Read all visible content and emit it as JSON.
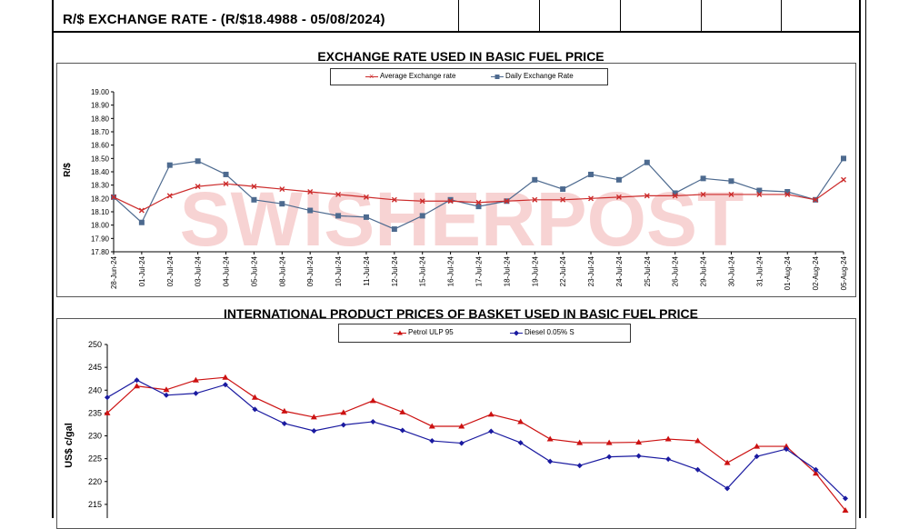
{
  "header": {
    "title": "R/$ EXCHANGE RATE - (R/$18.4988 - 05/08/2024)"
  },
  "watermark": "SWISHERPOST",
  "colors": {
    "average": "#cc2b2b",
    "daily": "#4d6a8f",
    "petrol": "#cc1111",
    "diesel": "#1a1aa0",
    "watermark": "#f5c5c5"
  },
  "chart_data": [
    {
      "type": "line",
      "title": "EXCHANGE RATE USED IN BASIC FUEL PRICE",
      "ylabel": "R/$",
      "xlabel": "",
      "ylim": [
        17.8,
        19.0
      ],
      "yticks": [
        "19.00",
        "18.90",
        "18.80",
        "18.70",
        "18.60",
        "18.50",
        "18.40",
        "18.30",
        "18.20",
        "18.10",
        "18.00",
        "17.90",
        "17.80"
      ],
      "grid": false,
      "legend": "top-center",
      "categories": [
        "28-Jun-24",
        "01-Jul-24",
        "02-Jul-24",
        "03-Jul-24",
        "04-Jul-24",
        "05-Jul-24",
        "08-Jul-24",
        "09-Jul-24",
        "10-Jul-24",
        "11-Jul-24",
        "12-Jul-24",
        "15-Jul-24",
        "16-Jul-24",
        "17-Jul-24",
        "18-Jul-24",
        "19-Jul-24",
        "22-Jul-24",
        "23-Jul-24",
        "24-Jul-24",
        "25-Jul-24",
        "26-Jul-24",
        "29-Jul-24",
        "30-Jul-24",
        "31-Jul-24",
        "01-Aug-24",
        "02-Aug-24",
        "05-Aug-24"
      ],
      "series": [
        {
          "name": "Average Exchange rate",
          "marker": "x",
          "values": [
            18.21,
            18.11,
            18.22,
            18.29,
            18.31,
            18.29,
            18.27,
            18.25,
            18.23,
            18.21,
            18.19,
            18.18,
            18.18,
            18.17,
            18.18,
            18.19,
            18.19,
            18.2,
            18.21,
            18.22,
            18.22,
            18.23,
            18.23,
            18.23,
            18.23,
            18.19,
            18.34
          ]
        },
        {
          "name": "Daily Exchange Rate",
          "marker": "square",
          "values": [
            18.21,
            18.02,
            18.45,
            18.48,
            18.38,
            18.19,
            18.16,
            18.11,
            18.07,
            18.06,
            17.97,
            18.07,
            18.19,
            18.14,
            18.18,
            18.34,
            18.27,
            18.38,
            18.34,
            18.47,
            18.24,
            18.35,
            18.33,
            18.26,
            18.25,
            18.19,
            18.5
          ]
        }
      ]
    },
    {
      "type": "line",
      "title": "INTERNATIONAL PRODUCT PRICES OF BASKET USED IN BASIC FUEL PRICE",
      "ylabel": "US$ c/gal",
      "xlabel": "",
      "ylim": [
        212,
        250
      ],
      "yticks": [
        "250",
        "245",
        "240",
        "235",
        "230",
        "225",
        "220",
        "215"
      ],
      "grid": false,
      "legend": "top-center",
      "series": [
        {
          "name": "Petrol ULP 95",
          "marker": "triangle",
          "values": [
            235.0,
            240.9,
            240.1,
            242.2,
            242.8,
            238.4,
            235.4,
            234.1,
            235.1,
            237.7,
            235.2,
            232.1,
            232.1,
            234.7,
            233.1,
            229.3,
            228.5,
            228.5,
            228.6,
            229.3,
            228.9,
            224.1,
            227.7,
            227.7,
            221.8,
            213.7
          ]
        },
        {
          "name": "Diesel 0.05% S",
          "marker": "diamond",
          "values": [
            238.4,
            242.2,
            238.9,
            239.3,
            241.2,
            235.8,
            232.7,
            231.1,
            232.4,
            233.1,
            231.2,
            228.9,
            228.4,
            231.0,
            228.5,
            224.4,
            223.5,
            225.4,
            225.6,
            224.9,
            222.6,
            218.5,
            225.5,
            227.1,
            222.6,
            216.3
          ]
        }
      ]
    }
  ]
}
